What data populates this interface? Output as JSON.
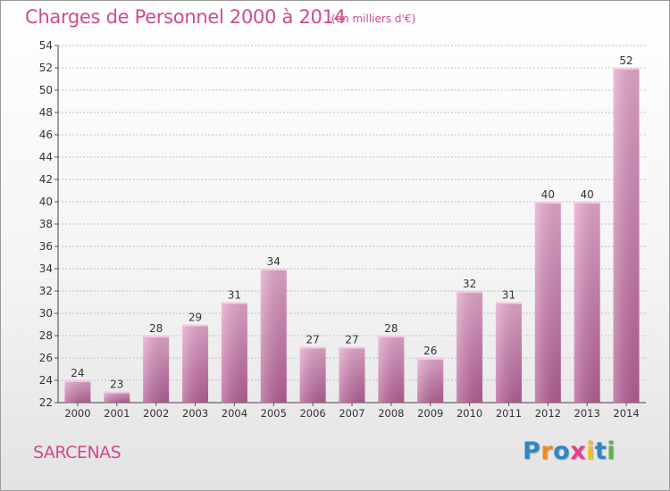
{
  "header": {
    "title": "Charges de Personnel 2000 à 2014",
    "subtitle": "(en milliers d'€)"
  },
  "footer": {
    "commune": "SARCENAS",
    "logo": {
      "letters": [
        "P",
        "r",
        "o",
        "x",
        "i",
        "t",
        "i"
      ],
      "colors": [
        "#2f86c6",
        "#f08a1c",
        "#2f86c6",
        "#e43f8c",
        "#f2c01e",
        "#2f86c6",
        "#5ab446"
      ]
    }
  },
  "colors": {
    "accent": "#cf4a8f",
    "bar_light": "#e6a9cf",
    "bar_dark": "#b45f94",
    "grid": "#c0c0c0"
  },
  "chart_data": {
    "type": "bar",
    "title": "Charges de Personnel 2000 à 2014",
    "subtitle": "(en milliers d'€)",
    "categories": [
      "2000",
      "2001",
      "2002",
      "2003",
      "2004",
      "2005",
      "2006",
      "2007",
      "2008",
      "2009",
      "2010",
      "2011",
      "2012",
      "2013",
      "2014"
    ],
    "values": [
      24,
      23,
      28,
      29,
      31,
      34,
      27,
      27,
      28,
      26,
      32,
      31,
      40,
      40,
      52
    ],
    "ylim": [
      22,
      54
    ],
    "yticks": [
      22,
      24,
      26,
      28,
      30,
      32,
      34,
      36,
      38,
      40,
      42,
      44,
      46,
      48,
      50,
      52,
      54
    ],
    "grid": true,
    "data_labels": true
  }
}
